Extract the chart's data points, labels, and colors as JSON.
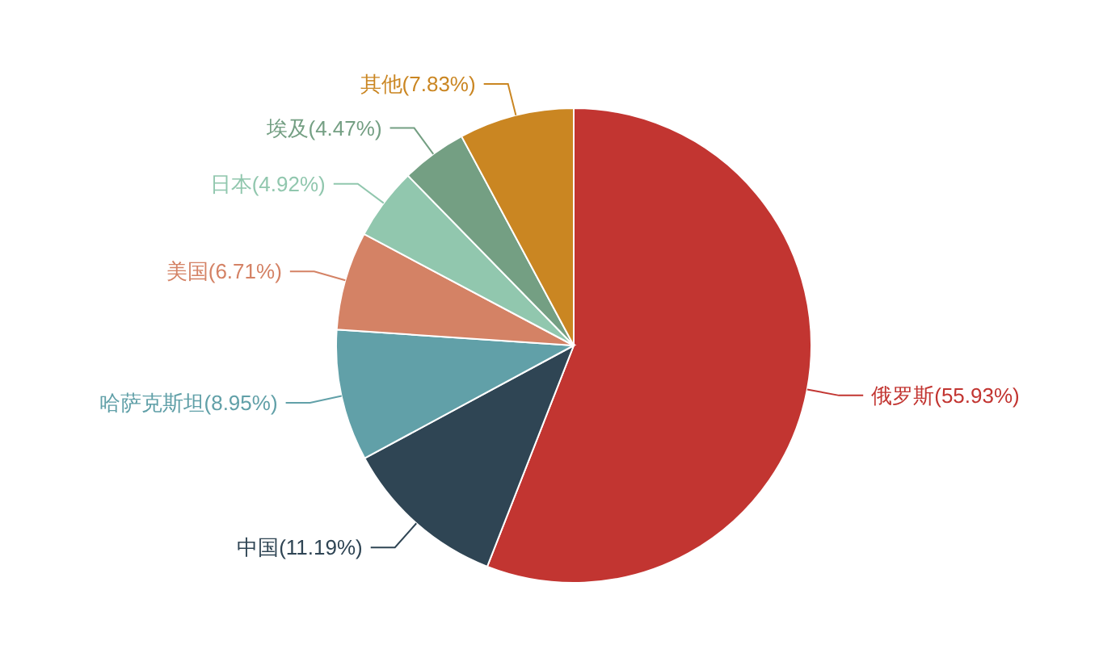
{
  "chart_data": {
    "type": "pie",
    "categories": [
      "俄罗斯",
      "中国",
      "哈萨克斯坦",
      "美国",
      "日本",
      "埃及",
      "其他"
    ],
    "values": [
      55.93,
      11.19,
      8.95,
      6.71,
      4.92,
      4.47,
      7.83
    ],
    "colors": [
      "#c23531",
      "#2f4554",
      "#61a0a8",
      "#d48265",
      "#91c7ae",
      "#749f83",
      "#ca8622"
    ],
    "value_labels": [
      "(55.93%)",
      "(11.19%)",
      "(8.95%)",
      "(6.71%)",
      "(4.92%)",
      "(4.47%)",
      "(7.83%)"
    ]
  }
}
